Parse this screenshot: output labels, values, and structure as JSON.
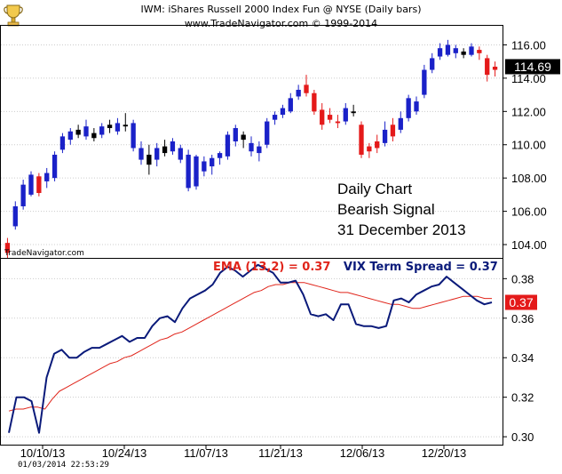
{
  "header": {
    "title": "IWM:  iShares Russell 2000 Index Fun @ NYSE  (Daily bars)",
    "copyright": "www.TradeNavigator.com © 1999-2014"
  },
  "watermark": "TradeNavigator.com",
  "notes": [
    "Daily Chart",
    "Bearish Signal",
    "31 December 2013"
  ],
  "timestamp": "01/03/2014  22:53:29",
  "colors": {
    "up": "#1a21c8",
    "down": "#e41a1a",
    "neutral": "#000000",
    "ema": "#e0241a",
    "vix": "#0a1a7a",
    "grid": "#cccccc"
  },
  "chart_data": [
    {
      "type": "candlestick",
      "title": "IWM:  iShares Russell 2000 Index Fun @ NYSE  (Daily bars)",
      "ylim": [
        103.2,
        117.2
      ],
      "y_ticks": [
        "104.00",
        "106.00",
        "108.00",
        "110.00",
        "112.00",
        "114.00",
        "116.00"
      ],
      "x_ticks": [
        "10/10/13",
        "10/24/13",
        "11/07/13",
        "11/21/13",
        "12/06/13",
        "12/20/13"
      ],
      "last_value": "114.69",
      "candles": [
        {
          "o": 103.5,
          "h": 104.4,
          "l": 103.2,
          "c": 104.1,
          "d": "down"
        },
        {
          "o": 105.1,
          "h": 106.6,
          "l": 104.9,
          "c": 106.3,
          "d": "up"
        },
        {
          "o": 106.3,
          "h": 107.9,
          "l": 106.1,
          "c": 107.6,
          "d": "up"
        },
        {
          "o": 107.0,
          "h": 108.4,
          "l": 106.9,
          "c": 108.2,
          "d": "up"
        },
        {
          "o": 108.1,
          "h": 108.3,
          "l": 106.9,
          "c": 107.1,
          "d": "down"
        },
        {
          "o": 107.8,
          "h": 108.6,
          "l": 107.4,
          "c": 108.3,
          "d": "up"
        },
        {
          "o": 108.0,
          "h": 109.6,
          "l": 107.8,
          "c": 109.4,
          "d": "up"
        },
        {
          "o": 109.7,
          "h": 110.7,
          "l": 109.5,
          "c": 110.5,
          "d": "up"
        },
        {
          "o": 110.3,
          "h": 111.0,
          "l": 110.0,
          "c": 110.8,
          "d": "up"
        },
        {
          "o": 110.6,
          "h": 111.2,
          "l": 110.4,
          "c": 110.9,
          "d": "neutral"
        },
        {
          "o": 110.5,
          "h": 111.5,
          "l": 110.3,
          "c": 111.1,
          "d": "up"
        },
        {
          "o": 110.7,
          "h": 111.0,
          "l": 110.2,
          "c": 110.4,
          "d": "neutral"
        },
        {
          "o": 110.6,
          "h": 111.3,
          "l": 110.4,
          "c": 111.1,
          "d": "up"
        },
        {
          "o": 111.0,
          "h": 111.5,
          "l": 110.7,
          "c": 111.2,
          "d": "neutral"
        },
        {
          "o": 110.8,
          "h": 111.6,
          "l": 110.6,
          "c": 111.3,
          "d": "up"
        },
        {
          "o": 111.1,
          "h": 111.9,
          "l": 110.8,
          "c": 111.2,
          "d": "neutral"
        },
        {
          "o": 111.3,
          "h": 111.5,
          "l": 109.6,
          "c": 109.8,
          "d": "up"
        },
        {
          "o": 109.8,
          "h": 110.2,
          "l": 108.8,
          "c": 109.1,
          "d": "up"
        },
        {
          "o": 109.4,
          "h": 110.0,
          "l": 108.2,
          "c": 108.8,
          "d": "neutral"
        },
        {
          "o": 109.1,
          "h": 110.1,
          "l": 108.7,
          "c": 109.8,
          "d": "up"
        },
        {
          "o": 109.5,
          "h": 110.3,
          "l": 109.3,
          "c": 109.9,
          "d": "neutral"
        },
        {
          "o": 109.6,
          "h": 110.4,
          "l": 109.4,
          "c": 110.2,
          "d": "up"
        },
        {
          "o": 109.8,
          "h": 110.0,
          "l": 108.9,
          "c": 109.1,
          "d": "up"
        },
        {
          "o": 109.4,
          "h": 109.7,
          "l": 107.2,
          "c": 107.4,
          "d": "up"
        },
        {
          "o": 107.5,
          "h": 109.4,
          "l": 107.3,
          "c": 109.3,
          "d": "up"
        },
        {
          "o": 109.0,
          "h": 109.3,
          "l": 108.1,
          "c": 108.4,
          "d": "up"
        },
        {
          "o": 108.7,
          "h": 109.4,
          "l": 108.2,
          "c": 109.2,
          "d": "up"
        },
        {
          "o": 109.2,
          "h": 109.6,
          "l": 108.8,
          "c": 109.5,
          "d": "up"
        },
        {
          "o": 109.3,
          "h": 110.8,
          "l": 109.1,
          "c": 110.6,
          "d": "up"
        },
        {
          "o": 110.2,
          "h": 111.2,
          "l": 109.9,
          "c": 111.0,
          "d": "up"
        },
        {
          "o": 110.6,
          "h": 110.8,
          "l": 109.8,
          "c": 110.3,
          "d": "neutral"
        },
        {
          "o": 110.1,
          "h": 110.5,
          "l": 109.3,
          "c": 109.6,
          "d": "up"
        },
        {
          "o": 109.5,
          "h": 110.2,
          "l": 109.0,
          "c": 109.9,
          "d": "up"
        },
        {
          "o": 110.0,
          "h": 111.6,
          "l": 109.8,
          "c": 111.4,
          "d": "up"
        },
        {
          "o": 111.5,
          "h": 112.0,
          "l": 111.2,
          "c": 111.8,
          "d": "up"
        },
        {
          "o": 111.8,
          "h": 112.4,
          "l": 111.6,
          "c": 112.2,
          "d": "up"
        },
        {
          "o": 112.0,
          "h": 113.1,
          "l": 111.9,
          "c": 112.8,
          "d": "up"
        },
        {
          "o": 112.9,
          "h": 113.6,
          "l": 112.7,
          "c": 113.3,
          "d": "up"
        },
        {
          "o": 113.6,
          "h": 114.2,
          "l": 112.9,
          "c": 113.1,
          "d": "down"
        },
        {
          "o": 113.1,
          "h": 113.3,
          "l": 111.8,
          "c": 112.0,
          "d": "down"
        },
        {
          "o": 112.1,
          "h": 112.5,
          "l": 110.9,
          "c": 111.2,
          "d": "down"
        },
        {
          "o": 111.8,
          "h": 112.2,
          "l": 111.3,
          "c": 111.5,
          "d": "down"
        },
        {
          "o": 111.4,
          "h": 111.8,
          "l": 111.0,
          "c": 111.3,
          "d": "down"
        },
        {
          "o": 111.4,
          "h": 112.5,
          "l": 111.2,
          "c": 112.2,
          "d": "up"
        },
        {
          "o": 112.0,
          "h": 112.4,
          "l": 111.7,
          "c": 111.9,
          "d": "neutral"
        },
        {
          "o": 111.2,
          "h": 111.4,
          "l": 109.2,
          "c": 109.4,
          "d": "down"
        },
        {
          "o": 109.6,
          "h": 110.1,
          "l": 109.2,
          "c": 109.9,
          "d": "down"
        },
        {
          "o": 109.8,
          "h": 110.6,
          "l": 109.5,
          "c": 110.2,
          "d": "down"
        },
        {
          "o": 110.1,
          "h": 111.4,
          "l": 109.9,
          "c": 110.9,
          "d": "up"
        },
        {
          "o": 111.2,
          "h": 111.6,
          "l": 110.2,
          "c": 110.5,
          "d": "down"
        },
        {
          "o": 110.9,
          "h": 112.0,
          "l": 110.7,
          "c": 111.6,
          "d": "up"
        },
        {
          "o": 111.6,
          "h": 113.0,
          "l": 111.4,
          "c": 112.8,
          "d": "up"
        },
        {
          "o": 112.0,
          "h": 112.9,
          "l": 111.8,
          "c": 112.6,
          "d": "up"
        },
        {
          "o": 113.0,
          "h": 114.8,
          "l": 112.8,
          "c": 114.5,
          "d": "up"
        },
        {
          "o": 114.5,
          "h": 115.5,
          "l": 114.3,
          "c": 115.2,
          "d": "up"
        },
        {
          "o": 115.3,
          "h": 116.1,
          "l": 115.1,
          "c": 115.8,
          "d": "up"
        },
        {
          "o": 115.4,
          "h": 116.3,
          "l": 115.3,
          "c": 116.0,
          "d": "up"
        },
        {
          "o": 115.8,
          "h": 116.0,
          "l": 115.2,
          "c": 115.5,
          "d": "up"
        },
        {
          "o": 115.6,
          "h": 115.8,
          "l": 115.2,
          "c": 115.4,
          "d": "neutral"
        },
        {
          "o": 115.4,
          "h": 116.1,
          "l": 115.3,
          "c": 115.9,
          "d": "up"
        },
        {
          "o": 115.7,
          "h": 115.9,
          "l": 115.1,
          "c": 115.5,
          "d": "down"
        },
        {
          "o": 115.2,
          "h": 115.4,
          "l": 113.8,
          "c": 114.2,
          "d": "down"
        },
        {
          "o": 114.5,
          "h": 115.0,
          "l": 114.1,
          "c": 114.69,
          "d": "down"
        }
      ]
    },
    {
      "type": "line",
      "ylim": [
        0.296,
        0.386
      ],
      "y_ticks": [
        "0.30",
        "0.32",
        "0.34",
        "0.36",
        "0.38"
      ],
      "last_value": "0.37",
      "series": [
        {
          "name": "EMA (13,2) = 0.37",
          "values": [
            0.313,
            0.314,
            0.314,
            0.315,
            0.315,
            0.314,
            0.319,
            0.323,
            0.325,
            0.327,
            0.329,
            0.331,
            0.333,
            0.335,
            0.337,
            0.338,
            0.34,
            0.341,
            0.343,
            0.345,
            0.347,
            0.349,
            0.35,
            0.352,
            0.353,
            0.355,
            0.357,
            0.359,
            0.361,
            0.363,
            0.365,
            0.367,
            0.369,
            0.371,
            0.373,
            0.374,
            0.376,
            0.377,
            0.377,
            0.378,
            0.378,
            0.378,
            0.377,
            0.376,
            0.375,
            0.374,
            0.373,
            0.373,
            0.372,
            0.371,
            0.37,
            0.369,
            0.368,
            0.367,
            0.367,
            0.366,
            0.365,
            0.365,
            0.366,
            0.367,
            0.368,
            0.369,
            0.37,
            0.371,
            0.371,
            0.371,
            0.37,
            0.37
          ]
        },
        {
          "name": "VIX Term Spread = 0.37",
          "values": [
            0.302,
            0.32,
            0.32,
            0.318,
            0.302,
            0.33,
            0.342,
            0.344,
            0.34,
            0.34,
            0.343,
            0.345,
            0.345,
            0.347,
            0.349,
            0.351,
            0.348,
            0.35,
            0.35,
            0.356,
            0.36,
            0.361,
            0.358,
            0.365,
            0.37,
            0.372,
            0.374,
            0.377,
            0.383,
            0.386,
            0.384,
            0.381,
            0.384,
            0.387,
            0.385,
            0.383,
            0.378,
            0.378,
            0.379,
            0.372,
            0.362,
            0.361,
            0.362,
            0.359,
            0.367,
            0.367,
            0.357,
            0.356,
            0.356,
            0.355,
            0.356,
            0.369,
            0.37,
            0.368,
            0.372,
            0.374,
            0.376,
            0.377,
            0.381,
            0.378,
            0.375,
            0.372,
            0.369,
            0.367,
            0.368
          ]
        }
      ]
    }
  ]
}
